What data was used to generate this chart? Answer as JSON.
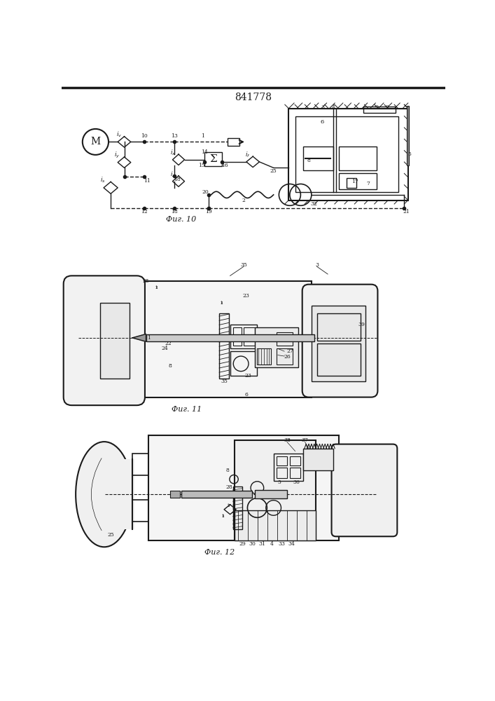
{
  "title": "841778",
  "fig1_caption": "Фиг. 10",
  "fig2_caption": "Фиг. 11",
  "fig3_caption": "Фиг. 12",
  "bg_color": "#ffffff",
  "lc": "#1a1a1a"
}
